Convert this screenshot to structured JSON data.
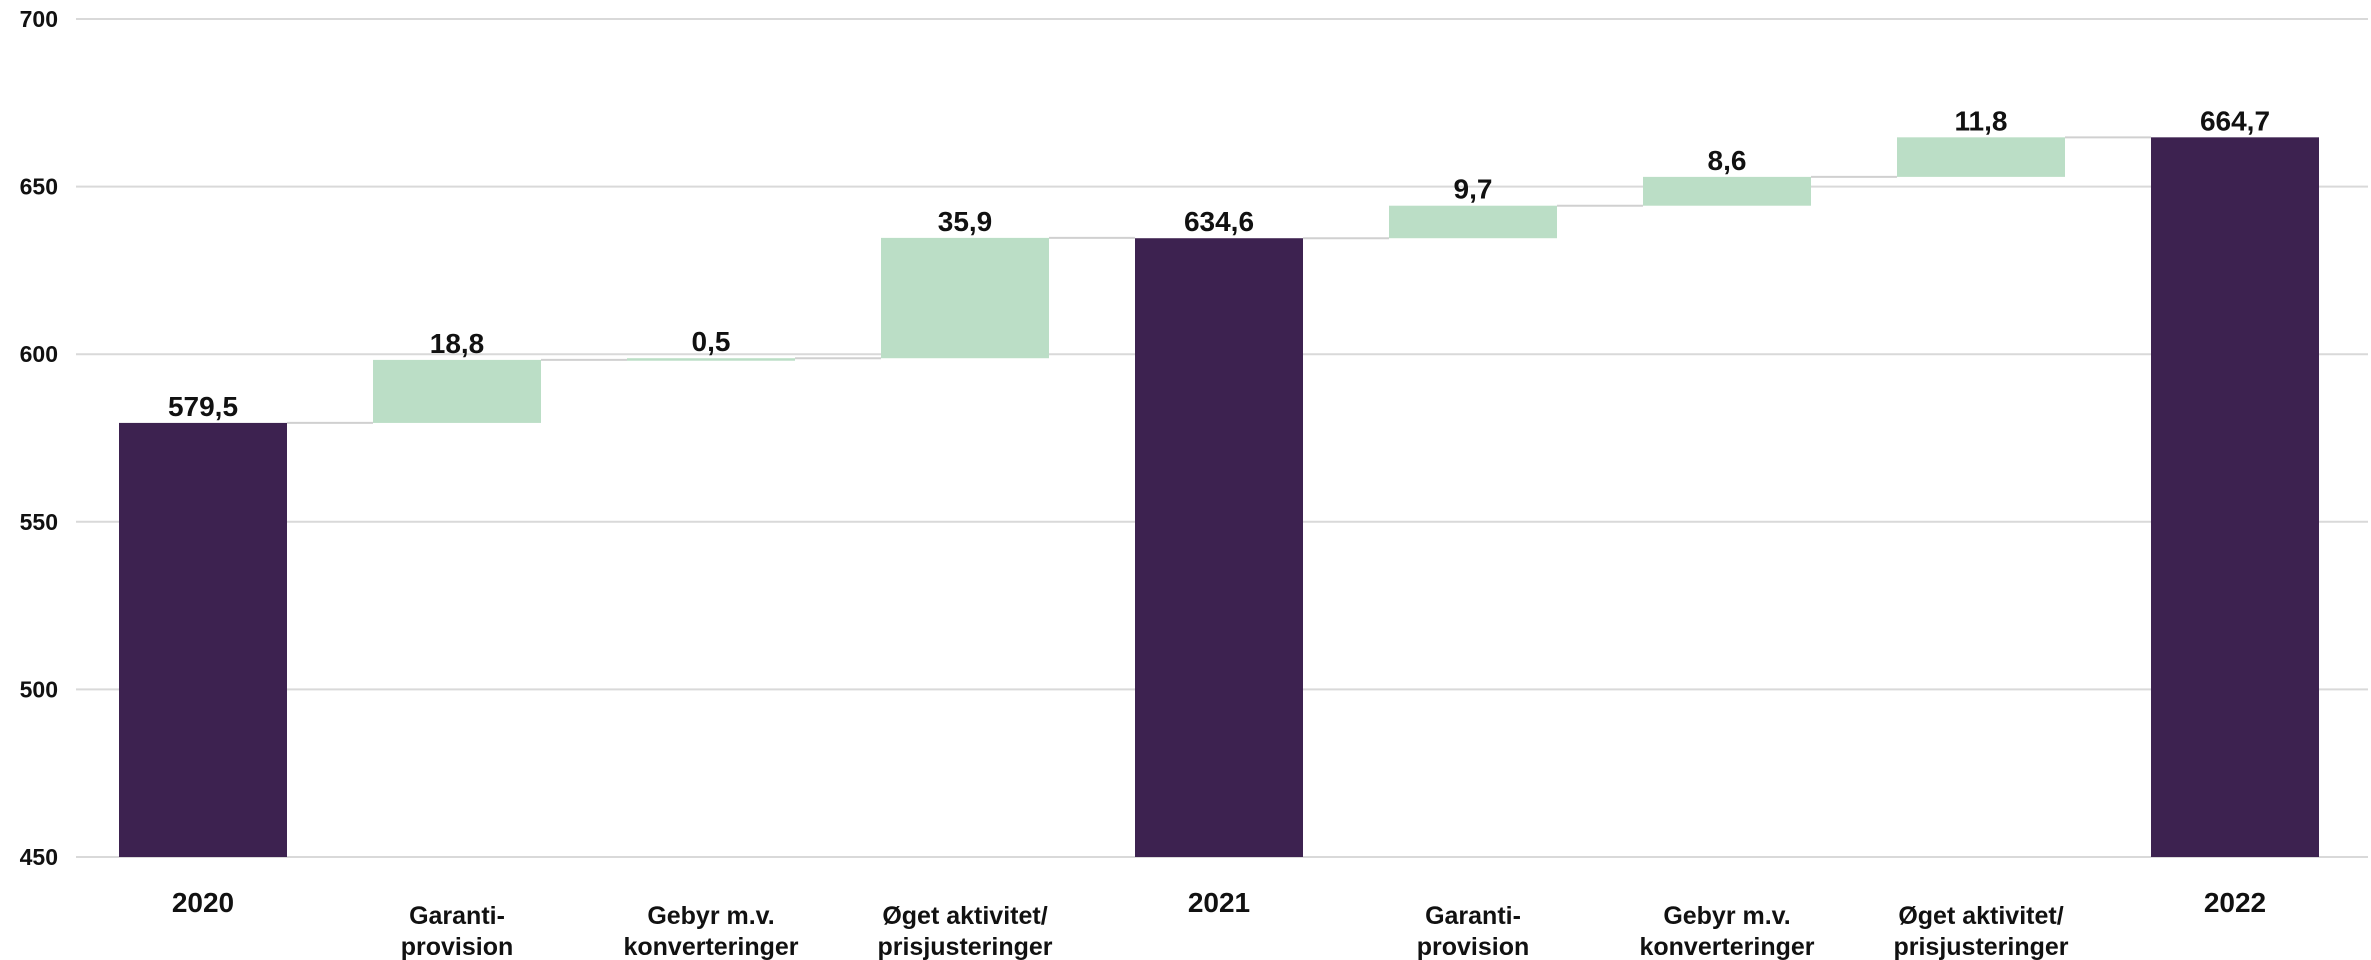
{
  "chart_data": {
    "type": "bar",
    "subtype": "waterfall",
    "title": "",
    "xlabel": "",
    "ylabel": "",
    "ylim": [
      450,
      700
    ],
    "yticks": [
      450,
      500,
      550,
      600,
      650,
      700
    ],
    "ytick_labels": [
      "450",
      "500",
      "550",
      "600",
      "650",
      "700"
    ],
    "grid": true,
    "legend": "none",
    "colors": {
      "total": "#3d2250",
      "increase": "#bbdec6",
      "grid": "#d9d9d9",
      "connector": "#d0d0d0"
    },
    "categories": [
      "2020",
      "Garanti-\nprovision",
      "Gebyr m.v.\nkonverteringer",
      "Øget aktivitet/\nprisjusteringer",
      "2021",
      "Garanti-\nprovision",
      "Gebyr m.v.\nkonverteringer",
      "Øget aktivitet/\nprisjusteringer",
      "2022"
    ],
    "bar_kinds": [
      "total",
      "increase",
      "increase",
      "increase",
      "total",
      "increase",
      "increase",
      "increase",
      "total"
    ],
    "values": [
      579.5,
      18.8,
      0.5,
      35.9,
      634.6,
      9.7,
      8.6,
      11.8,
      664.7
    ],
    "data_labels": [
      "579,5",
      "18,8",
      "0,5",
      "35,9",
      "634,6",
      "9,7",
      "8,6",
      "11,8",
      "664,7"
    ]
  }
}
